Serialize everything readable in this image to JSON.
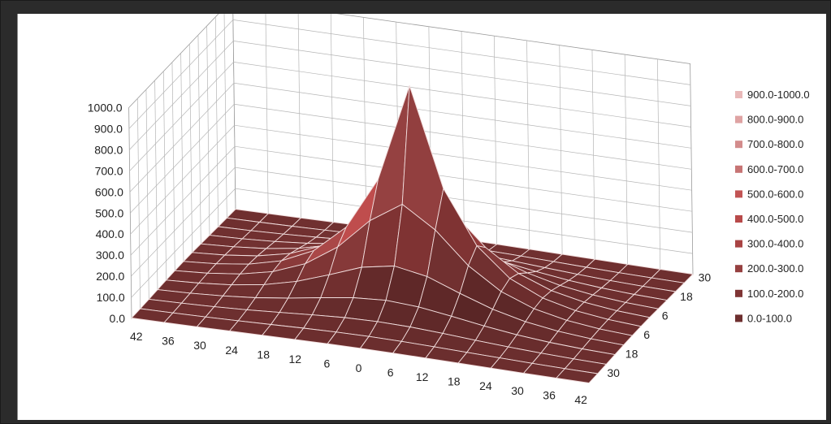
{
  "chart_data": {
    "type": "surface",
    "title": "",
    "zlabel": "",
    "zlim": [
      0,
      1000
    ],
    "z_ticks": [
      "0.0",
      "100.0",
      "200.0",
      "300.0",
      "400.0",
      "500.0",
      "600.0",
      "700.0",
      "800.0",
      "900.0",
      "1000.0"
    ],
    "x_ticks": [
      "42",
      "36",
      "30",
      "24",
      "18",
      "12",
      "6",
      "0",
      "6",
      "12",
      "18",
      "24",
      "30",
      "36",
      "42"
    ],
    "y_ticks": [
      "30",
      "18",
      "6",
      "6",
      "18",
      "30"
    ],
    "peak_value": 1000,
    "peak_location": "center",
    "legend_position": "right",
    "legend": [
      {
        "label": "900.0-1000.0",
        "color": "#e8b8b8"
      },
      {
        "label": "800.0-900.0",
        "color": "#dfa3a3"
      },
      {
        "label": "700.0-800.0",
        "color": "#d38c8c"
      },
      {
        "label": "600.0-700.0",
        "color": "#c77474"
      },
      {
        "label": "500.0-600.0",
        "color": "#c25454"
      },
      {
        "label": "400.0-500.0",
        "color": "#b84a4a"
      },
      {
        "label": "300.0-400.0",
        "color": "#a94444"
      },
      {
        "label": "200.0-300.0",
        "color": "#964040"
      },
      {
        "label": "100.0-200.0",
        "color": "#7f3535"
      },
      {
        "label": "0.0-100.0",
        "color": "#6e2f2f"
      }
    ],
    "grid": true
  }
}
